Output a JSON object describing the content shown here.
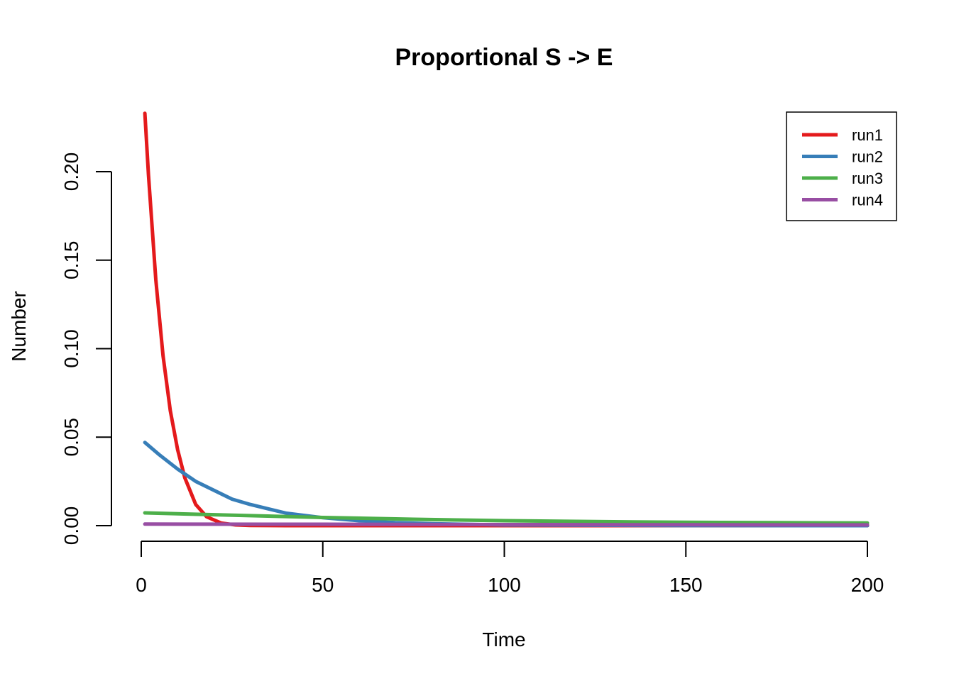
{
  "chart_data": {
    "type": "line",
    "title": "Proportional S -> E",
    "xlabel": "Time",
    "ylabel": "Number",
    "xlim": [
      1,
      200
    ],
    "ylim": [
      0,
      0.233
    ],
    "x_ticks": [
      0,
      50,
      100,
      150,
      200
    ],
    "x_tick_labels": [
      "0",
      "50",
      "100",
      "150",
      "200"
    ],
    "y_ticks": [
      0,
      0.05,
      0.1,
      0.15,
      0.2
    ],
    "y_tick_labels": [
      "0.00",
      "0.05",
      "0.10",
      "0.15",
      "0.20"
    ],
    "grid": false,
    "legend_position": "top-right",
    "series": [
      {
        "name": "run1",
        "color": "#e41a1c",
        "x": [
          1,
          2,
          4,
          6,
          8,
          10,
          12,
          15,
          18,
          22,
          26,
          30,
          40,
          60,
          100,
          150,
          200
        ],
        "y": [
          0.233,
          0.198,
          0.139,
          0.096,
          0.065,
          0.043,
          0.027,
          0.012,
          0.005,
          0.0015,
          0.0004,
          0.0001,
          0.0,
          0.0,
          0.0,
          0.0,
          0.0
        ]
      },
      {
        "name": "run2",
        "color": "#377eb8",
        "x": [
          1,
          5,
          10,
          15,
          20,
          25,
          30,
          40,
          50,
          60,
          70,
          80,
          100,
          150,
          200
        ],
        "y": [
          0.047,
          0.04,
          0.032,
          0.025,
          0.02,
          0.015,
          0.012,
          0.007,
          0.0045,
          0.0028,
          0.0017,
          0.0011,
          0.0004,
          5e-05,
          0.0
        ]
      },
      {
        "name": "run3",
        "color": "#4daf4a",
        "x": [
          1,
          25,
          50,
          75,
          100,
          125,
          150,
          175,
          200
        ],
        "y": [
          0.0072,
          0.0059,
          0.0046,
          0.0036,
          0.0028,
          0.0023,
          0.0019,
          0.0017,
          0.0015
        ]
      },
      {
        "name": "run4",
        "color": "#984ea3",
        "x": [
          1,
          50,
          100,
          150,
          200
        ],
        "y": [
          0.0009,
          0.0008,
          0.0006,
          0.0005,
          0.0004
        ]
      }
    ]
  }
}
